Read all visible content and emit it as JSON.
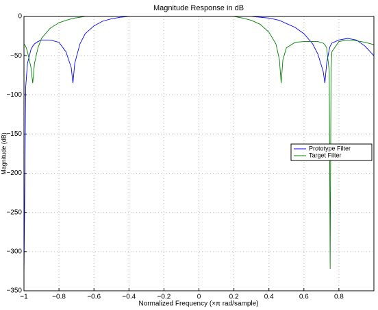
{
  "chart_data": {
    "type": "line",
    "title": "Magnitude Response in dB",
    "x_label": "Normalized Frequency  (×π rad/sample)",
    "y_label": "Magnitude (dB)",
    "x": [
      -1,
      -0.99,
      -0.98,
      -0.96,
      -0.95,
      -0.94,
      -0.92,
      -0.9,
      -0.85,
      -0.8,
      -0.76,
      -0.73,
      -0.72,
      -0.71,
      -0.68,
      -0.65,
      -0.6,
      -0.55,
      -0.5,
      -0.45,
      -0.4,
      -0.3,
      -0.2,
      -0.1,
      0,
      0.1,
      0.2,
      0.25,
      0.3,
      0.35,
      0.4,
      0.44,
      0.46,
      0.47,
      0.48,
      0.5,
      0.55,
      0.6,
      0.65,
      0.68,
      0.71,
      0.72,
      0.73,
      0.745,
      0.75,
      0.755,
      0.76,
      0.8,
      0.85,
      0.9,
      0.95,
      1.0
    ],
    "series": [
      {
        "name": "Prototype Filter",
        "color": "#0000ff",
        "values": [
          -330,
          -90,
          -60,
          -42,
          -38,
          -35,
          -32,
          -30,
          -30,
          -33,
          -45,
          -65,
          -85,
          -60,
          -35,
          -22,
          -12,
          -6,
          -3,
          -1,
          0,
          0,
          0,
          0,
          0,
          0,
          0,
          0,
          0,
          -1,
          -2,
          -4,
          -5,
          -6,
          -7,
          -9,
          -14,
          -22,
          -35,
          -48,
          -70,
          -85,
          -60,
          -42,
          -38,
          -36,
          -34,
          -30,
          -28,
          -30,
          -38,
          -50
        ]
      },
      {
        "name": "Target Filter",
        "color": "#008000",
        "values": [
          -35,
          -38,
          -45,
          -65,
          -85,
          -60,
          -40,
          -28,
          -15,
          -8,
          -5,
          -3,
          -3,
          -2,
          -1,
          0,
          0,
          0,
          0,
          0,
          0,
          0,
          0,
          0,
          0,
          0,
          0,
          -2,
          -5,
          -10,
          -20,
          -35,
          -55,
          -85,
          -55,
          -40,
          -33,
          -32,
          -32,
          -32,
          -34,
          -36,
          -40,
          -70,
          -322,
          -70,
          -45,
          -32,
          -30,
          -31,
          -33,
          -36
        ]
      }
    ],
    "xlim": [
      -1,
      1
    ],
    "ylim": [
      -350,
      0
    ],
    "xticks": [
      {
        "value": -1,
        "label": "−1"
      },
      {
        "value": -0.8,
        "label": "−0.8"
      },
      {
        "value": -0.6,
        "label": "−0.6"
      },
      {
        "value": -0.4,
        "label": "−0.4"
      },
      {
        "value": -0.2,
        "label": "−0.2"
      },
      0,
      0.2,
      0.4,
      0.6,
      0.8
    ],
    "yticks": [
      {
        "value": -350,
        "label": "−350"
      },
      {
        "value": -300,
        "label": "−300"
      },
      {
        "value": -250,
        "label": "−250"
      },
      {
        "value": -200,
        "label": "−200"
      },
      {
        "value": -150,
        "label": "−150"
      },
      {
        "value": -100,
        "label": "−100"
      },
      {
        "value": -50,
        "label": "−50"
      },
      0
    ],
    "grid": true,
    "legend": "right"
  }
}
